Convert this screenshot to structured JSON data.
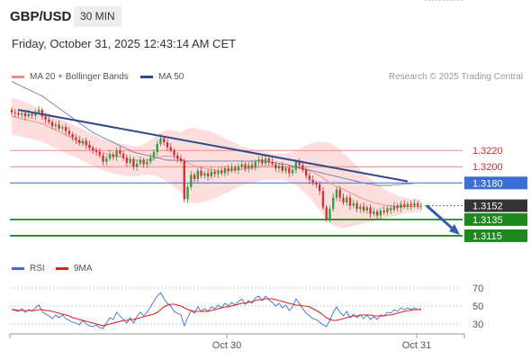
{
  "header": {
    "symbol": "GBP/USD",
    "timeframe": "30 MIN"
  },
  "timestamp": "Friday, October 31, 2025 12:43:14 AM CET",
  "legend": {
    "ma20_bb": {
      "label": "MA 20 + Bollinger Bands",
      "color": "#f08a8a"
    },
    "ma50": {
      "label": "MA 50",
      "color": "#2e4a8c"
    },
    "rsi": {
      "label": "RSI",
      "color": "#3b6fd6"
    },
    "rsi9ma": {
      "label": "9MA",
      "color": "#e02020"
    }
  },
  "credit": "Research © 2025 Trading Central",
  "colors": {
    "up": "#2e9e3e",
    "down": "#d03030",
    "support": "#1e8a1e",
    "resistance": "#f08a8a",
    "pivot": "#3b6fd6",
    "trend": "#2e4a8c"
  },
  "chart_data": [
    {
      "type": "candlestick",
      "title": "GBP/USD 30 MIN",
      "x_tick_labels": [
        "Oct 30",
        "Oct 31"
      ],
      "ylim": [
        1.3095,
        1.33
      ],
      "price_levels": [
        {
          "label": "1.3220",
          "value": 1.322,
          "kind": "resistance"
        },
        {
          "label": "1.3200",
          "value": 1.32,
          "kind": "resistance"
        },
        {
          "label": "1.3180",
          "value": 1.318,
          "kind": "pivot"
        },
        {
          "label": "1.3152",
          "value": 1.3152,
          "kind": "current"
        },
        {
          "label": "1.3135",
          "value": 1.3135,
          "kind": "support"
        },
        {
          "label": "1.3115",
          "value": 1.3115,
          "kind": "support"
        }
      ],
      "close": [
        1.3267,
        1.3266,
        1.3264,
        1.3266,
        1.3262,
        1.3265,
        1.3263,
        1.3267,
        1.327,
        1.3262,
        1.3258,
        1.3255,
        1.325,
        1.3252,
        1.3247,
        1.3249,
        1.3244,
        1.324,
        1.3236,
        1.3233,
        1.3229,
        1.3232,
        1.3227,
        1.3223,
        1.322,
        1.3218,
        1.3214,
        1.3206,
        1.321,
        1.3215,
        1.3212,
        1.322,
        1.3216,
        1.3211,
        1.3205,
        1.3209,
        1.32,
        1.3204,
        1.3208,
        1.3203,
        1.3206,
        1.3211,
        1.3218,
        1.3228,
        1.3235,
        1.323,
        1.3224,
        1.322,
        1.3214,
        1.321,
        1.3207,
        1.316,
        1.3175,
        1.319,
        1.3185,
        1.3195,
        1.3189,
        1.3192,
        1.3188,
        1.3194,
        1.3191,
        1.3195,
        1.3192,
        1.3198,
        1.3195,
        1.3199,
        1.3196,
        1.32,
        1.3203,
        1.3198,
        1.3202,
        1.3199,
        1.3206,
        1.3209,
        1.3204,
        1.321,
        1.3206,
        1.3203,
        1.3198,
        1.3201,
        1.3195,
        1.3198,
        1.3192,
        1.3196,
        1.3206,
        1.3202,
        1.3196,
        1.3189,
        1.3184,
        1.318,
        1.3178,
        1.317,
        1.315,
        1.3136,
        1.3148,
        1.3162,
        1.3172,
        1.3162,
        1.3156,
        1.3162,
        1.3152,
        1.3155,
        1.3148,
        1.3151,
        1.3146,
        1.315,
        1.3142,
        1.3145,
        1.314,
        1.3146,
        1.3144,
        1.3149,
        1.3147,
        1.3152,
        1.3149,
        1.3154,
        1.3151,
        1.3154,
        1.3152,
        1.3155,
        1.3152,
        1.3152
      ],
      "ma20": [
        1.3262,
        1.3261,
        1.326,
        1.3259,
        1.3258,
        1.3257,
        1.3256,
        1.3255,
        1.3254,
        1.3253,
        1.3251,
        1.3249,
        1.3247,
        1.3245,
        1.3243,
        1.3241,
        1.3239,
        1.3237,
        1.3235,
        1.3233,
        1.3231,
        1.3229,
        1.3227,
        1.3225,
        1.3223,
        1.3221,
        1.3219,
        1.3217,
        1.3216,
        1.3215,
        1.3214,
        1.3213,
        1.3212,
        1.3211,
        1.321,
        1.3209,
        1.3208,
        1.3208,
        1.3208,
        1.3208,
        1.3208,
        1.3209,
        1.321,
        1.3211,
        1.3212,
        1.3213,
        1.3213,
        1.3213,
        1.3212,
        1.3211,
        1.321,
        1.3207,
        1.3205,
        1.3203,
        1.3201,
        1.32,
        1.3199,
        1.3198,
        1.3197,
        1.3196,
        1.3196,
        1.3195,
        1.3195,
        1.3195,
        1.3195,
        1.3195,
        1.3196,
        1.3196,
        1.3197,
        1.3197,
        1.3198,
        1.3198,
        1.3199,
        1.3199,
        1.32,
        1.32,
        1.32,
        1.32,
        1.32,
        1.32,
        1.32,
        1.3199,
        1.3199,
        1.3199,
        1.3199,
        1.3198,
        1.3197,
        1.3196,
        1.3195,
        1.3193,
        1.3191,
        1.3189,
        1.3186,
        1.3183,
        1.318,
        1.3178,
        1.3176,
        1.3174,
        1.3172,
        1.317,
        1.3168,
        1.3166,
        1.3164,
        1.3162,
        1.316,
        1.3159,
        1.3157,
        1.3156,
        1.3155,
        1.3154,
        1.3153,
        1.3152,
        1.3152,
        1.3151,
        1.3151,
        1.3151,
        1.3151,
        1.3151,
        1.3151,
        1.3151,
        1.3151,
        1.3151
      ],
      "bb_upper": [
        1.3285,
        1.3284,
        1.3283,
        1.3282,
        1.328,
        1.3278,
        1.3276,
        1.3274,
        1.3272,
        1.327,
        1.3268,
        1.3266,
        1.3264,
        1.3262,
        1.326,
        1.3258,
        1.3256,
        1.3254,
        1.3252,
        1.325,
        1.3248,
        1.3246,
        1.3244,
        1.3242,
        1.324,
        1.3238,
        1.3236,
        1.3234,
        1.3233,
        1.3232,
        1.3231,
        1.323,
        1.3229,
        1.3228,
        1.3227,
        1.3226,
        1.3225,
        1.3225,
        1.3226,
        1.3228,
        1.323,
        1.3233,
        1.3236,
        1.3239,
        1.3242,
        1.3244,
        1.3245,
        1.3245,
        1.3244,
        1.3243,
        1.3242,
        1.3245,
        1.3247,
        1.3248,
        1.3248,
        1.3247,
        1.3246,
        1.3245,
        1.3244,
        1.3243,
        1.3241,
        1.3239,
        1.3237,
        1.3235,
        1.3233,
        1.3231,
        1.3229,
        1.3227,
        1.3225,
        1.3224,
        1.3223,
        1.3222,
        1.3221,
        1.322,
        1.3219,
        1.3218,
        1.3217,
        1.3216,
        1.3216,
        1.3216,
        1.3216,
        1.3216,
        1.3217,
        1.3218,
        1.322,
        1.3222,
        1.3224,
        1.3226,
        1.3228,
        1.3229,
        1.323,
        1.3231,
        1.3231,
        1.323,
        1.3229,
        1.3227,
        1.3224,
        1.3221,
        1.3217,
        1.3213,
        1.3209,
        1.3205,
        1.3201,
        1.3197,
        1.3193,
        1.3189,
        1.3185,
        1.3182,
        1.3179,
        1.3176,
        1.3173,
        1.317,
        1.3168,
        1.3166,
        1.3164,
        1.3163,
        1.3162,
        1.3161,
        1.316,
        1.316,
        1.316,
        1.316
      ],
      "bb_lower": [
        1.324,
        1.3239,
        1.3238,
        1.3237,
        1.3236,
        1.3235,
        1.3234,
        1.3233,
        1.3232,
        1.3231,
        1.3229,
        1.3227,
        1.3225,
        1.3223,
        1.3221,
        1.3219,
        1.3217,
        1.3215,
        1.3213,
        1.3211,
        1.3209,
        1.3207,
        1.3205,
        1.3203,
        1.3201,
        1.3199,
        1.3197,
        1.3195,
        1.3194,
        1.3193,
        1.3192,
        1.3191,
        1.319,
        1.3189,
        1.3188,
        1.3188,
        1.3188,
        1.3188,
        1.3189,
        1.319,
        1.319,
        1.319,
        1.3189,
        1.3188,
        1.3186,
        1.3184,
        1.3181,
        1.3178,
        1.3175,
        1.3172,
        1.3169,
        1.3162,
        1.3158,
        1.3156,
        1.3155,
        1.3155,
        1.3156,
        1.3157,
        1.3158,
        1.3159,
        1.3161,
        1.3163,
        1.3165,
        1.3167,
        1.3169,
        1.3171,
        1.3173,
        1.3175,
        1.3177,
        1.3178,
        1.3179,
        1.318,
        1.3181,
        1.3182,
        1.3183,
        1.3184,
        1.3184,
        1.3184,
        1.3184,
        1.3184,
        1.3184,
        1.3183,
        1.3181,
        1.3179,
        1.3177,
        1.3174,
        1.317,
        1.3166,
        1.3162,
        1.3157,
        1.3152,
        1.3147,
        1.3141,
        1.3136,
        1.3131,
        1.3128,
        1.3126,
        1.3125,
        1.3125,
        1.3125,
        1.3126,
        1.3127,
        1.3128,
        1.3129,
        1.313,
        1.3131,
        1.3132,
        1.3133,
        1.3134,
        1.3135,
        1.3136,
        1.3137,
        1.3138,
        1.3139,
        1.314,
        1.3141,
        1.3142,
        1.3143,
        1.3143,
        1.3144,
        1.3144,
        1.3144
      ],
      "ma50": [
        1.3305,
        1.3303,
        1.3301,
        1.3299,
        1.3297,
        1.3295,
        1.3293,
        1.3291,
        1.3289,
        1.3287,
        1.3284,
        1.3281,
        1.3278,
        1.3275,
        1.3272,
        1.3269,
        1.3266,
        1.3263,
        1.326,
        1.3257,
        1.3254,
        1.3251,
        1.3248,
        1.3245,
        1.3242,
        1.324,
        1.3238,
        1.3236,
        1.3234,
        1.3232,
        1.323,
        1.3228,
        1.3226,
        1.3224,
        1.3222,
        1.322,
        1.3218,
        1.3217,
        1.3216,
        1.3215,
        1.3214,
        1.3213,
        1.3212,
        1.3211,
        1.321,
        1.3209,
        1.3208,
        1.3208,
        1.3208,
        1.3208,
        1.3208,
        1.3207,
        1.3207,
        1.3207,
        1.3207,
        1.3207,
        1.3207,
        1.3207,
        1.3207,
        1.3207,
        1.3207,
        1.3207,
        1.3207,
        1.3207,
        1.3207,
        1.3207,
        1.3207,
        1.3207,
        1.3207,
        1.3207,
        1.3207,
        1.3207,
        1.3207,
        1.3207,
        1.3207,
        1.3206,
        1.3206,
        1.3205,
        1.3205,
        1.3204,
        1.3203,
        1.3203,
        1.3202,
        1.3201,
        1.32,
        1.3199,
        1.3198,
        1.3197,
        1.3196,
        1.3195,
        1.3194,
        1.3193,
        1.3192,
        1.3191,
        1.319,
        1.3189,
        1.3188,
        1.3187,
        1.3186,
        1.3185,
        1.3184,
        1.3183,
        1.3182,
        1.3181,
        1.318,
        1.3179,
        1.3179,
        1.3178,
        1.3177,
        1.3177,
        1.3177,
        1.3177,
        1.3177,
        1.3178,
        1.3178,
        1.3178,
        1.3179,
        1.3179,
        1.3179,
        1.318
      ],
      "trendline": [
        [
          2,
          1.327
        ],
        [
          117,
          1.3182
        ]
      ],
      "projection": {
        "from": 1.3152,
        "to": 1.3115
      }
    },
    {
      "type": "line",
      "title": "RSI",
      "ylim": [
        20,
        80
      ],
      "y_tick_labels": [
        "70",
        "50",
        "30"
      ],
      "y_ticks": [
        70,
        50,
        30
      ],
      "series": [
        {
          "name": "RSI",
          "values": [
            46,
            45,
            44,
            47,
            43,
            46,
            44,
            48,
            51,
            44,
            41,
            39,
            36,
            40,
            37,
            40,
            36,
            34,
            32,
            31,
            29,
            34,
            30,
            28,
            27,
            29,
            26,
            25,
            31,
            37,
            35,
            43,
            39,
            35,
            31,
            37,
            31,
            38,
            43,
            39,
            43,
            49,
            55,
            61,
            65,
            58,
            53,
            50,
            44,
            42,
            40,
            28,
            37,
            45,
            42,
            49,
            44,
            47,
            44,
            49,
            47,
            51,
            48,
            53,
            50,
            54,
            51,
            55,
            58,
            52,
            56,
            53,
            59,
            61,
            56,
            61,
            57,
            54,
            50,
            53,
            48,
            51,
            45,
            49,
            58,
            53,
            47,
            42,
            39,
            36,
            35,
            32,
            29,
            27,
            34,
            43,
            49,
            43,
            39,
            44,
            37,
            41,
            37,
            40,
            36,
            40,
            35,
            38,
            35,
            40,
            39,
            43,
            42,
            46,
            44,
            48,
            46,
            48,
            46,
            48,
            46,
            47
          ]
        },
        {
          "name": "9MA",
          "values": [
            46,
            46,
            45,
            45,
            45,
            45,
            45,
            45,
            46,
            46,
            45,
            45,
            44,
            43,
            42,
            41,
            40,
            39,
            37,
            36,
            35,
            34,
            33,
            32,
            31,
            30,
            29,
            28,
            29,
            30,
            31,
            32,
            33,
            34,
            34,
            35,
            35,
            36,
            37,
            38,
            39,
            40,
            41,
            43,
            46,
            49,
            51,
            52,
            52,
            51,
            50,
            48,
            46,
            45,
            44,
            44,
            44,
            44,
            44,
            45,
            46,
            47,
            48,
            49,
            49,
            50,
            51,
            52,
            53,
            53,
            54,
            55,
            56,
            57,
            57,
            58,
            58,
            58,
            57,
            56,
            55,
            54,
            53,
            52,
            51,
            51,
            50,
            50,
            49,
            47,
            45,
            43,
            40,
            37,
            35,
            34,
            34,
            35,
            36,
            37,
            38,
            39,
            39,
            40,
            40,
            40,
            40,
            39,
            39,
            39,
            39,
            40,
            40,
            41,
            42,
            43,
            44,
            45,
            45,
            46,
            46,
            46
          ]
        }
      ]
    }
  ]
}
